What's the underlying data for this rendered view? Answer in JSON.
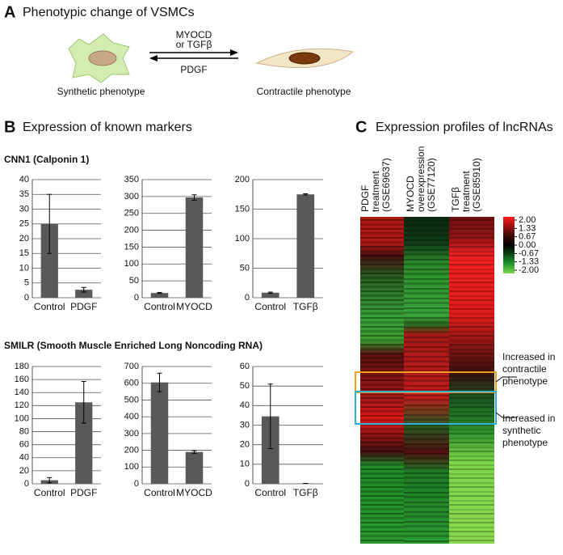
{
  "panel_a": {
    "label": "A",
    "title": "Phenotypic change of VSMCs",
    "forward": [
      "MYOCD",
      "or TGFβ"
    ],
    "backward": "PDGF",
    "left_cell": "Synthetic phenotype",
    "right_cell": "Contractile phenotype"
  },
  "panel_b": {
    "label": "B",
    "title": "Expression of known markers",
    "rows": [
      "CNN1 (Calponin  1)",
      "SMILR (Smooth Muscle Enriched Long Noncoding RNA)"
    ]
  },
  "chart_data": [
    {
      "type": "bar",
      "categories": [
        "Control",
        "PDGF"
      ],
      "values": [
        25,
        2.7
      ],
      "errors": [
        10,
        0.8
      ],
      "color": "#595959",
      "ylim": [
        0,
        40
      ],
      "yticks": [
        0,
        5,
        10,
        15,
        20,
        25,
        30,
        35,
        40
      ],
      "grid": true
    },
    {
      "type": "bar",
      "categories": [
        "Control",
        "MYOCD"
      ],
      "values": [
        14,
        297
      ],
      "errors": [
        1.5,
        8
      ],
      "color": "#595959",
      "ylim": [
        0,
        350
      ],
      "yticks": [
        0,
        50,
        100,
        150,
        200,
        250,
        300,
        350
      ],
      "grid": true
    },
    {
      "type": "bar",
      "categories": [
        "Control",
        "TGFβ"
      ],
      "values": [
        8.5,
        175
      ],
      "errors": [
        1,
        1
      ],
      "color": "#595959",
      "ylim": [
        0,
        200
      ],
      "yticks": [
        0,
        50,
        100,
        150,
        200
      ],
      "grid": true
    },
    {
      "type": "bar",
      "categories": [
        "Control",
        "PDGF"
      ],
      "values": [
        5.5,
        125
      ],
      "errors": [
        4,
        32
      ],
      "color": "#595959",
      "ylim": [
        0,
        180
      ],
      "yticks": [
        0,
        20,
        40,
        60,
        80,
        100,
        120,
        140,
        160,
        180
      ],
      "grid": true
    },
    {
      "type": "bar",
      "categories": [
        "Control",
        "MYOCD"
      ],
      "values": [
        605,
        190
      ],
      "errors": [
        55,
        8
      ],
      "color": "#595959",
      "ylim": [
        0,
        700
      ],
      "yticks": [
        0,
        100,
        200,
        300,
        400,
        500,
        600,
        700
      ],
      "grid": true
    },
    {
      "type": "bar",
      "categories": [
        "Control",
        "TGFβ"
      ],
      "values": [
        34.5,
        0.2
      ],
      "errors": [
        16.5,
        0
      ],
      "color": "#595959",
      "ylim": [
        0,
        60
      ],
      "yticks": [
        0,
        10,
        20,
        30,
        40,
        50,
        60
      ],
      "grid": true
    }
  ],
  "panel_c": {
    "label": "C",
    "title": "Expression profiles of lncRNAs",
    "columns": [
      [
        "PDGF",
        "treatment",
        "(GSE69637)"
      ],
      [
        "MYOCD",
        "overexpression",
        "(GSE77120)"
      ],
      [
        "TGFβ",
        "treatment",
        "(GSE85910)"
      ]
    ],
    "color_scale": {
      "ticks": [
        {
          "value": 2,
          "label": "2.00"
        },
        {
          "value": 1.33,
          "label": "1.33"
        },
        {
          "value": 0.67,
          "label": "0.67"
        },
        {
          "value": 0,
          "label": "0.00"
        },
        {
          "value": -0.67,
          "label": "-0.67"
        },
        {
          "value": -1.33,
          "label": "-1.33"
        },
        {
          "value": -2,
          "label": "-2.00"
        }
      ],
      "colors": [
        "#ff1a1a",
        "#a01010",
        "#400808",
        "#000000",
        "#0a4a14",
        "#1e9a2a",
        "#7ed64a"
      ]
    },
    "annotations": [
      [
        "Increased in",
        "contractile",
        "phenotype"
      ],
      [
        "Increased in",
        "synthetic",
        "phenotype"
      ]
    ]
  }
}
